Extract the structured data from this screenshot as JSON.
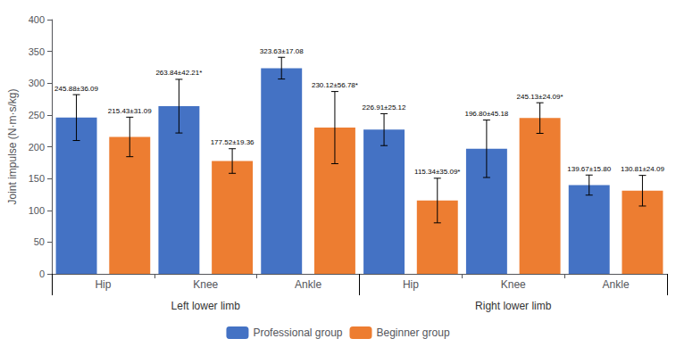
{
  "chart_data": {
    "type": "bar",
    "categories": [
      "Hip",
      "Knee",
      "Ankle",
      "Hip",
      "Knee",
      "Ankle"
    ],
    "category_groups": [
      "Left lower limb",
      "Right lower limb"
    ],
    "series": [
      {
        "name": "Professional group",
        "color": "#4472C4",
        "values": [
          245.88,
          263.84,
          323.63,
          226.91,
          196.8,
          139.67
        ],
        "errors": [
          36.09,
          42.21,
          17.08,
          25.12,
          45.18,
          15.8
        ],
        "value_labels": [
          "245.88±36.09",
          "263.84±42.21*",
          "323.63±17.08",
          "226.91±25.12",
          "196.80±45.18",
          "139.67±15.80"
        ]
      },
      {
        "name": "Beginner group",
        "color": "#ED7D31",
        "values": [
          215.43,
          177.52,
          230.12,
          115.34,
          245.13,
          130.81
        ],
        "errors": [
          31.09,
          19.36,
          56.78,
          35.09,
          24.09,
          24.09
        ],
        "value_labels": [
          "215.43±31.09",
          "177.52±19.36",
          "230.12±56.78*",
          "115.34±35.09*",
          "245.13±24.09*",
          "130.81±24.09"
        ]
      }
    ],
    "ylabel": "Joint impulse (N·m·s/kg)",
    "ylim": [
      0,
      400
    ],
    "yticks": [
      0,
      50,
      100,
      150,
      200,
      250,
      300,
      350,
      400
    ],
    "grid": false,
    "legend": "bottom",
    "data_labels": true
  }
}
